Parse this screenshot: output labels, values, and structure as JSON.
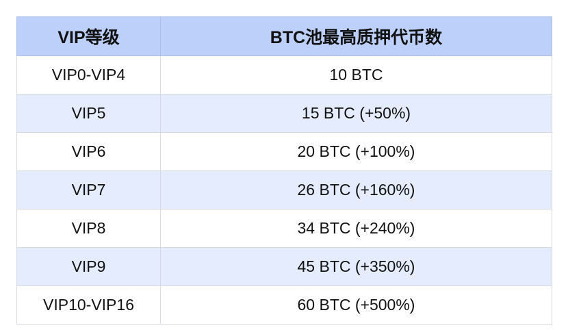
{
  "table": {
    "headers": [
      "VIP等级",
      "BTC池最高质押代币数"
    ],
    "rows": [
      [
        "VIP0-VIP4",
        "10 BTC"
      ],
      [
        "VIP5",
        "15 BTC (+50%)"
      ],
      [
        "VIP6",
        "20 BTC (+100%)"
      ],
      [
        "VIP7",
        "26 BTC (+160%)"
      ],
      [
        "VIP8",
        "34 BTC (+240%)"
      ],
      [
        "VIP9",
        "45 BTC (+350%)"
      ],
      [
        "VIP10-VIP16",
        "60 BTC (+500%)"
      ]
    ]
  },
  "colors": {
    "header_bg": "#bcd0f9",
    "alt_row_bg": "#e4ecfd"
  }
}
